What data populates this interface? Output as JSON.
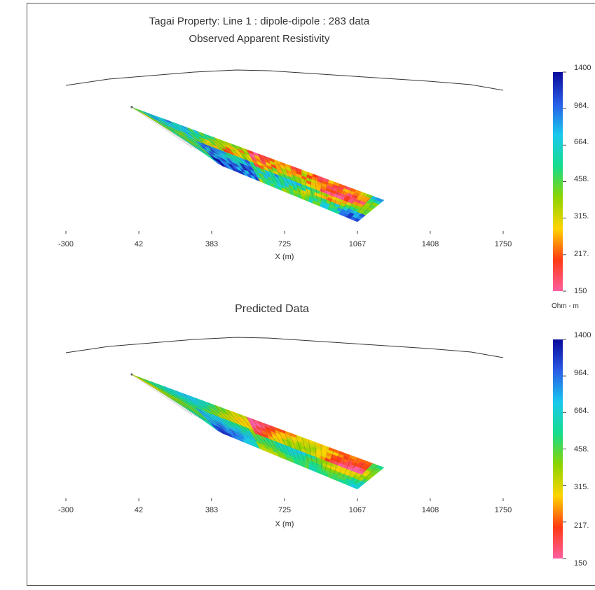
{
  "chart_data": [
    {
      "type": "heatmap",
      "title": "Tagai Property: Line 1 : dipole-dipole : 283 data",
      "subtitle": "Observed Apparent Resistivity",
      "xlabel": "X (m)",
      "x_ticks": [
        "-300",
        "42",
        "383",
        "725",
        "1067",
        "1408",
        "1750"
      ],
      "xlim": [
        -300,
        1750
      ],
      "colorbar": {
        "ticks": [
          "1400",
          "964.",
          "664.",
          "458.",
          "315.",
          "217.",
          "150"
        ],
        "unit": "Ohm - m",
        "range": [
          150,
          1400
        ],
        "scale": "log",
        "colors": [
          "#ff5fa0",
          "#ff3a14",
          "#ffd400",
          "#8cd400",
          "#16dc8c",
          "#19c8ee",
          "#2a5ce6",
          "#0a0a9a"
        ]
      },
      "pseudosection": {
        "x_start": 0,
        "x_end": 1130,
        "n_data": 283,
        "values_description_only": false
      }
    },
    {
      "type": "heatmap",
      "title": "Predicted Data",
      "xlabel": "X (m)",
      "x_ticks": [
        "-300",
        "42",
        "383",
        "725",
        "1067",
        "1408",
        "1750"
      ],
      "xlim": [
        -300,
        1750
      ],
      "colorbar": {
        "ticks": [
          "1400",
          "964.",
          "664.",
          "458.",
          "315.",
          "217.",
          "150"
        ],
        "range": [
          150,
          1400
        ],
        "scale": "log"
      }
    }
  ]
}
